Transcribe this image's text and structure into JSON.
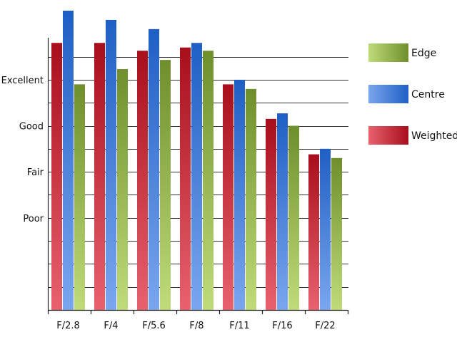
{
  "chart_data": {
    "type": "bar",
    "categories": [
      "F/2.8",
      "F/4",
      "F/5.6",
      "F/8",
      "F/11",
      "F/16",
      "F/22"
    ],
    "series": [
      {
        "name": "Weighted",
        "values": [
          4.8,
          4.8,
          4.63,
          4.7,
          3.9,
          3.15,
          2.38
        ]
      },
      {
        "name": "Centre",
        "values": [
          5.5,
          5.3,
          5.1,
          4.8,
          4.0,
          3.27,
          2.5
        ]
      },
      {
        "name": "Edge",
        "values": [
          3.9,
          4.23,
          4.43,
          4.63,
          3.8,
          3.0,
          2.3
        ]
      }
    ],
    "yticks": [
      {
        "value": 1,
        "label": "Poor"
      },
      {
        "value": 2,
        "label": "Fair"
      },
      {
        "value": 3,
        "label": "Good"
      },
      {
        "value": 4,
        "label": "Excellent"
      }
    ],
    "ylim": [
      -1,
      5.5
    ],
    "grid_step": 0.5,
    "grid": true,
    "legend": {
      "position": "right",
      "order": [
        "Edge",
        "Centre",
        "Weighted"
      ]
    },
    "colors": {
      "Weighted": {
        "top": "#a80e1c",
        "bottom": "#e8626e"
      },
      "Centre": {
        "top": "#1f5fc4",
        "bottom": "#7aa6ee"
      },
      "Edge": {
        "top": "#6e8f2c",
        "bottom": "#c0dc7a"
      }
    }
  }
}
